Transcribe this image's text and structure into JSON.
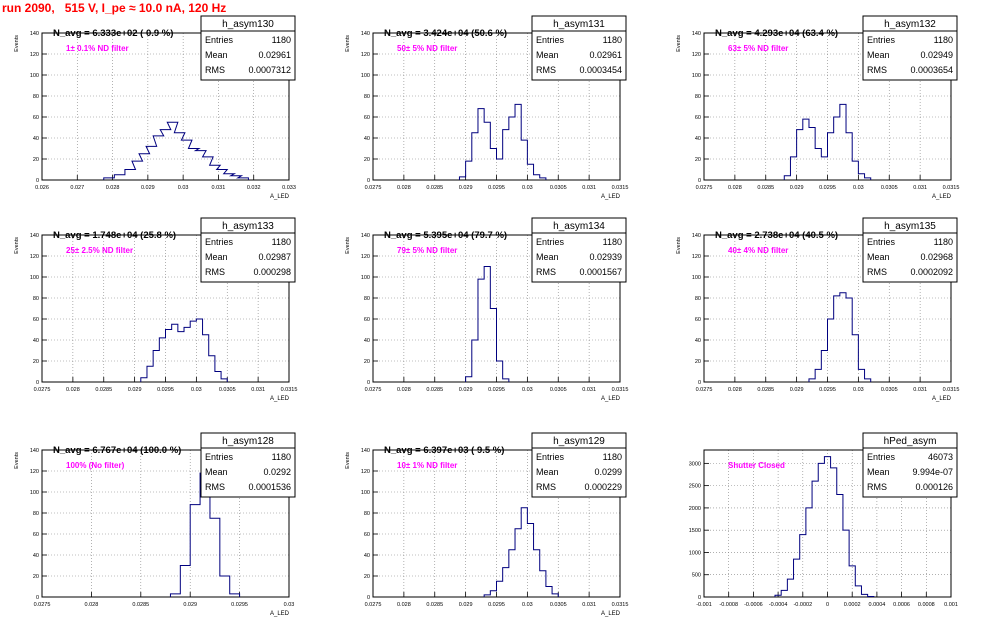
{
  "run_title": "run 2090,   515 V, I_pe ≈ 10.0 nA, 120 Hz",
  "colors": {
    "histogram": "#00007f",
    "annotation": "#ff00ff",
    "title": "#ff0000",
    "grid": "#808080"
  },
  "chart_data": [
    {
      "type": "histogram",
      "title": "h_asym130",
      "navg": "N_avg = 6.333e+02 ( 0.9 %)",
      "note": "1± 0.1% ND filter",
      "stats": [
        [
          "Entries",
          "1180"
        ],
        [
          "Mean",
          "0.02961"
        ],
        [
          "RMS",
          "0.0007312"
        ]
      ],
      "ylabel": "Events",
      "xlabel": "A_LED",
      "xlim": [
        0.026,
        0.033
      ],
      "ylim": [
        0,
        140
      ],
      "xticks": [
        "0.026",
        "0.027",
        "0.028",
        "0.029",
        "0.03",
        "0.031",
        "0.032",
        "0.033"
      ],
      "yticks": [
        "0",
        "20",
        "40",
        "60",
        "80",
        "100",
        "120",
        "140"
      ],
      "x": [
        0.0279,
        0.0282,
        0.0285,
        0.0287,
        0.0289,
        0.0291,
        0.0293,
        0.0295,
        0.0297,
        0.0299,
        0.0301,
        0.0303,
        0.0305,
        0.0307,
        0.0309,
        0.0311,
        0.0313,
        0.0315,
        0.0317
      ],
      "y": [
        2,
        5,
        10,
        18,
        25,
        32,
        42,
        48,
        55,
        45,
        38,
        30,
        28,
        22,
        14,
        10,
        6,
        4,
        2
      ]
    },
    {
      "type": "histogram",
      "title": "h_asym131",
      "navg": "N_avg = 3.424e+04 (50.6 %)",
      "note": "50± 5% ND filter",
      "stats": [
        [
          "Entries",
          "1180"
        ],
        [
          "Mean",
          "0.02961"
        ],
        [
          "RMS",
          "0.0003454"
        ]
      ],
      "ylabel": "Events",
      "xlabel": "A_LED",
      "xlim": [
        0.0275,
        0.0315
      ],
      "ylim": [
        0,
        140
      ],
      "xticks": [
        "0.0275",
        "0.028",
        "0.0285",
        "0.029",
        "0.0295",
        "0.03",
        "0.0305",
        "0.031",
        "0.0315"
      ],
      "yticks": [
        "0",
        "20",
        "40",
        "60",
        "80",
        "100",
        "120",
        "140"
      ],
      "x": [
        0.02895,
        0.02905,
        0.02915,
        0.02925,
        0.02935,
        0.02945,
        0.02955,
        0.02965,
        0.02975,
        0.02985,
        0.02995,
        0.03005,
        0.03015,
        0.03025
      ],
      "y": [
        3,
        18,
        45,
        68,
        55,
        30,
        20,
        48,
        60,
        72,
        38,
        15,
        5,
        2
      ]
    },
    {
      "type": "histogram",
      "title": "h_asym132",
      "navg": "N_avg = 4.293e+04 (63.4 %)",
      "note": "63± 5% ND filter",
      "stats": [
        [
          "Entries",
          "1180"
        ],
        [
          "Mean",
          "0.02949"
        ],
        [
          "RMS",
          "0.0003654"
        ]
      ],
      "ylabel": "Events",
      "xlabel": "A_LED",
      "xlim": [
        0.0275,
        0.0315
      ],
      "ylim": [
        0,
        140
      ],
      "xticks": [
        "0.0275",
        "0.028",
        "0.0285",
        "0.029",
        "0.0295",
        "0.03",
        "0.0305",
        "0.031",
        "0.0315"
      ],
      "yticks": [
        "0",
        "20",
        "40",
        "60",
        "80",
        "100",
        "120",
        "140"
      ],
      "x": [
        0.02885,
        0.02895,
        0.02905,
        0.02915,
        0.02925,
        0.02935,
        0.02945,
        0.02955,
        0.02965,
        0.02975,
        0.02985,
        0.02995,
        0.03005,
        0.03015
      ],
      "y": [
        4,
        22,
        48,
        58,
        50,
        30,
        22,
        45,
        60,
        72,
        45,
        18,
        6,
        2
      ]
    },
    {
      "type": "histogram",
      "title": "h_asym133",
      "navg": "N_avg = 1.748e+04 (25.8 %)",
      "note": "25± 2.5% ND filter",
      "stats": [
        [
          "Entries",
          "1180"
        ],
        [
          "Mean",
          "0.02987"
        ],
        [
          "RMS",
          "0.000298"
        ]
      ],
      "ylabel": "Events",
      "xlabel": "A_LED",
      "xlim": [
        0.0275,
        0.0315
      ],
      "ylim": [
        0,
        140
      ],
      "xticks": [
        "0.0275",
        "0.028",
        "0.0285",
        "0.029",
        "0.0295",
        "0.03",
        "0.0305",
        "0.031",
        "0.0315"
      ],
      "yticks": [
        "0",
        "20",
        "40",
        "60",
        "80",
        "100",
        "120",
        "140"
      ],
      "x": [
        0.02915,
        0.02925,
        0.02935,
        0.02945,
        0.02955,
        0.02965,
        0.02975,
        0.02985,
        0.02995,
        0.03005,
        0.03015,
        0.03025,
        0.03035,
        0.03045
      ],
      "y": [
        4,
        15,
        30,
        42,
        50,
        55,
        48,
        52,
        58,
        60,
        45,
        25,
        10,
        3
      ]
    },
    {
      "type": "histogram",
      "title": "h_asym134",
      "navg": "N_avg = 5.395e+04 (79.7 %)",
      "note": "79± 5% ND filter",
      "stats": [
        [
          "Entries",
          "1180"
        ],
        [
          "Mean",
          "0.02939"
        ],
        [
          "RMS",
          "0.0001567"
        ]
      ],
      "ylabel": "Events",
      "xlabel": "A_LED",
      "xlim": [
        0.0275,
        0.0315
      ],
      "ylim": [
        0,
        140
      ],
      "xticks": [
        "0.0275",
        "0.028",
        "0.0285",
        "0.029",
        "0.0295",
        "0.03",
        "0.0305",
        "0.031",
        "0.0315"
      ],
      "yticks": [
        "0",
        "20",
        "40",
        "60",
        "80",
        "100",
        "120",
        "140"
      ],
      "x": [
        0.02905,
        0.02915,
        0.02925,
        0.02935,
        0.02945,
        0.02955,
        0.02965
      ],
      "y": [
        5,
        40,
        98,
        110,
        70,
        20,
        3
      ]
    },
    {
      "type": "histogram",
      "title": "h_asym135",
      "navg": "N_avg = 2.738e+04 (40.5 %)",
      "note": "40± 4% ND filter",
      "stats": [
        [
          "Entries",
          "1180"
        ],
        [
          "Mean",
          "0.02968"
        ],
        [
          "RMS",
          "0.0002092"
        ]
      ],
      "ylabel": "Events",
      "xlabel": "A_LED",
      "xlim": [
        0.0275,
        0.0315
      ],
      "ylim": [
        0,
        140
      ],
      "xticks": [
        "0.0275",
        "0.028",
        "0.0285",
        "0.029",
        "0.0295",
        "0.03",
        "0.0305",
        "0.031",
        "0.0315"
      ],
      "yticks": [
        "0",
        "20",
        "40",
        "60",
        "80",
        "100",
        "120",
        "140"
      ],
      "x": [
        0.02925,
        0.02935,
        0.02945,
        0.02955,
        0.02965,
        0.02975,
        0.02985,
        0.02995,
        0.03005,
        0.03015
      ],
      "y": [
        3,
        12,
        30,
        60,
        82,
        85,
        80,
        45,
        12,
        3
      ]
    },
    {
      "type": "histogram",
      "title": "h_asym128",
      "navg": "N_avg = 6.767e+04 (100.0 %)",
      "note": "100% (No filter)",
      "stats": [
        [
          "Entries",
          "1180"
        ],
        [
          "Mean",
          "0.0292"
        ],
        [
          "RMS",
          "0.0001536"
        ]
      ],
      "ylabel": "Events",
      "xlabel": "A_LED",
      "xlim": [
        0.0275,
        0.03
      ],
      "ylim": [
        0,
        140
      ],
      "xticks": [
        "0.0275",
        "0.028",
        "0.0285",
        "0.029",
        "0.0295",
        "0.03"
      ],
      "yticks": [
        "0",
        "20",
        "40",
        "60",
        "80",
        "100",
        "120",
        "140"
      ],
      "x": [
        0.02885,
        0.02895,
        0.02905,
        0.02915,
        0.02925,
        0.02935,
        0.02945
      ],
      "y": [
        3,
        30,
        88,
        118,
        75,
        20,
        3
      ]
    },
    {
      "type": "histogram",
      "title": "h_asym129",
      "navg": "N_avg = 6.397e+03 ( 9.5 %)",
      "note": "10± 1% ND filter",
      "stats": [
        [
          "Entries",
          "1180"
        ],
        [
          "Mean",
          "0.0299"
        ],
        [
          "RMS",
          "0.000229"
        ]
      ],
      "ylabel": "Events",
      "xlabel": "A_LED",
      "xlim": [
        0.0275,
        0.0315
      ],
      "ylim": [
        0,
        140
      ],
      "xticks": [
        "0.0275",
        "0.028",
        "0.0285",
        "0.029",
        "0.0295",
        "0.03",
        "0.0305",
        "0.031",
        "0.0315"
      ],
      "yticks": [
        "0",
        "20",
        "40",
        "60",
        "80",
        "100",
        "120",
        "140"
      ],
      "x": [
        0.02935,
        0.02945,
        0.02955,
        0.02965,
        0.02975,
        0.02985,
        0.02995,
        0.03005,
        0.03015,
        0.03025,
        0.03035,
        0.03045
      ],
      "y": [
        2,
        6,
        15,
        28,
        45,
        65,
        85,
        70,
        45,
        25,
        10,
        3
      ]
    },
    {
      "type": "histogram",
      "title": "hPed_asym",
      "navg": "",
      "note": "Shutter Closed",
      "stats": [
        [
          "Entries",
          "46073"
        ],
        [
          "Mean",
          "9.994e-07"
        ],
        [
          "RMS",
          "0.000126"
        ]
      ],
      "ylabel": "",
      "xlabel": "",
      "xlim": [
        -0.001,
        0.001
      ],
      "ylim": [
        0,
        3300
      ],
      "xticks": [
        "-0.001",
        "-0.0008",
        "-0.0006",
        "-0.0004",
        "-0.0002",
        "0",
        "0.0002",
        "0.0004",
        "0.0006",
        "0.0008",
        "0.001"
      ],
      "yticks": [
        "0",
        "500",
        "1000",
        "1500",
        "2000",
        "2500",
        "3000"
      ],
      "x": [
        -0.0004,
        -0.00035,
        -0.0003,
        -0.00025,
        -0.0002,
        -0.00015,
        -0.0001,
        -5e-05,
        0,
        5e-05,
        0.0001,
        0.00015,
        0.0002,
        0.00025,
        0.0003,
        0.00035
      ],
      "y": [
        40,
        150,
        400,
        850,
        1400,
        2000,
        2600,
        3000,
        3150,
        2900,
        2300,
        1500,
        700,
        250,
        60,
        10
      ]
    }
  ]
}
